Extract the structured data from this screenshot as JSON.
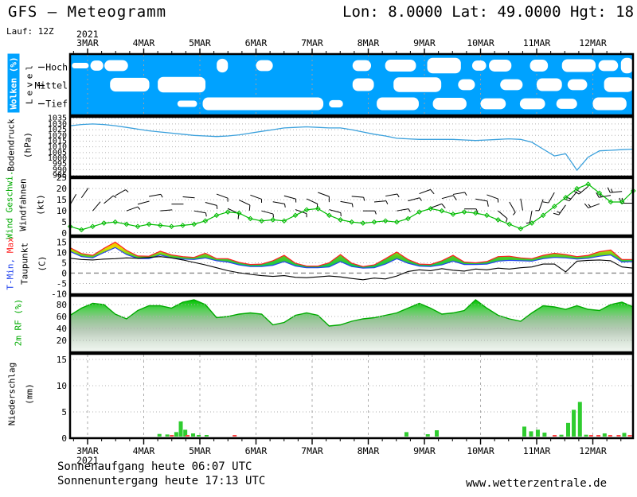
{
  "header": {
    "title": "GFS — Meteogramm",
    "coords": "Lon: 8.0000 Lat: 49.0000 Hgt: 18",
    "run": "Lauf: 12Z"
  },
  "footer": {
    "sunrise": "Sonnenaufgang heute 06:07 UTC",
    "sunset": "Sonnenuntergang heute 17:13 UTC",
    "site": "www.wetterzentrale.de"
  },
  "axis": {
    "year": "2021",
    "days": [
      "3MAR",
      "4MAR",
      "5MAR",
      "6MAR",
      "7MAR",
      "8MAR",
      "9MAR",
      "10MAR",
      "11MAR",
      "12MAR"
    ]
  },
  "panels": {
    "clouds": {
      "label": "Wolken (%)",
      "level_label": "Level",
      "rows": [
        "Hoch",
        "Mittel",
        "Tief"
      ]
    },
    "pressure": {
      "label": "Bodendruck",
      "unit": "(hPa)"
    },
    "wind": {
      "label": "Wind Geschwi.",
      "label2": "Windfahnen",
      "unit": "(kt)"
    },
    "temp": {
      "label_min": "T-Min,",
      "label_max": "Max",
      "label2": "Taupunkt",
      "unit": "(C)"
    },
    "rf": {
      "label": "2m RF (%)"
    },
    "precip": {
      "label": "Niederschlag",
      "unit": "(mm)"
    }
  },
  "colors": {
    "sky": "#00A2FF",
    "cloud": "#ffffff",
    "pressure": "#3AA0DC",
    "wind": "#00BB00",
    "tmax": "#FF2020",
    "tmin": "#2244EE",
    "dew": "#000000",
    "rfline": "#00AA00",
    "precip_green": "#2FCC2F",
    "precip_red": "#FF4444",
    "grid": "#b0b0b0"
  },
  "chart_data": [
    {
      "id": "clouds",
      "type": "area",
      "title": "Wolken (%)",
      "levels": [
        "Hoch",
        "Mittel",
        "Tief"
      ],
      "x_note": "days of MAR 2021, blobs = [day_start, day_end, coverage 0-1]",
      "blobs": {
        "hoch": [
          [
            2.72,
            3.02,
            0.3
          ],
          [
            3.05,
            3.28,
            0.55
          ],
          [
            3.3,
            3.72,
            0.6
          ],
          [
            5.3,
            5.5,
            0.75
          ],
          [
            6.0,
            6.3,
            0.6
          ],
          [
            7.72,
            8.05,
            0.6
          ],
          [
            8.3,
            8.85,
            0.65
          ],
          [
            9.05,
            9.65,
            0.85
          ],
          [
            9.85,
            10.1,
            0.55
          ],
          [
            10.15,
            10.55,
            0.65
          ],
          [
            10.88,
            11.2,
            0.65
          ],
          [
            11.45,
            12.05,
            0.7
          ],
          [
            12.1,
            12.45,
            0.6
          ],
          [
            12.5,
            12.72,
            0.85
          ]
        ],
        "mittel": [
          [
            3.4,
            4.1,
            0.75
          ],
          [
            4.25,
            5.1,
            0.85
          ],
          [
            7.72,
            8.1,
            0.7
          ],
          [
            8.45,
            9.3,
            0.8
          ],
          [
            9.6,
            9.9,
            0.6
          ],
          [
            10.35,
            10.75,
            0.6
          ],
          [
            11.0,
            11.45,
            0.7
          ],
          [
            11.55,
            11.9,
            0.6
          ],
          [
            12.2,
            12.72,
            0.8
          ]
        ],
        "tief": [
          [
            4.6,
            4.95,
            0.35
          ],
          [
            5.05,
            7.2,
            0.7
          ],
          [
            7.3,
            7.55,
            0.4
          ],
          [
            8.15,
            8.9,
            0.7
          ],
          [
            9.15,
            9.75,
            0.65
          ],
          [
            10.0,
            10.45,
            0.6
          ],
          [
            10.7,
            11.15,
            0.6
          ],
          [
            11.35,
            11.72,
            0.55
          ],
          [
            12.0,
            12.6,
            0.7
          ]
        ]
      }
    },
    {
      "id": "pressure",
      "type": "line",
      "ylabel": "Bodendruck (hPa)",
      "ylim": [
        984,
        1036.2
      ],
      "yticks": [
        1035,
        1030,
        1025,
        1020,
        1015,
        1010,
        1005,
        1000,
        995,
        990,
        985
      ],
      "t_start": 2.69,
      "t_end": 12.72,
      "values": [
        1028.5,
        1029.5,
        1030,
        1029.5,
        1028.5,
        1027,
        1025.5,
        1024,
        1023,
        1022,
        1021,
        1020,
        1019.5,
        1019,
        1019.5,
        1020.5,
        1022,
        1023.5,
        1025,
        1026.5,
        1027,
        1027.5,
        1027,
        1026.5,
        1026.5,
        1025,
        1023,
        1021,
        1019.5,
        1017.5,
        1017,
        1016.5,
        1016.5,
        1016.5,
        1016.5,
        1016,
        1015.5,
        1016,
        1016.5,
        1017,
        1016.5,
        1014,
        1008,
        1002,
        1004,
        989.5,
        1001,
        1006.5,
        1007,
        1007.5,
        1008
      ]
    },
    {
      "id": "wind",
      "type": "line",
      "ylabel": "Wind Geschwi. (kt)",
      "ylim": [
        -1,
        24.7
      ],
      "yticks": [
        25,
        20,
        15,
        10,
        5,
        0
      ],
      "t_start": 2.69,
      "t_end": 12.72,
      "speed": [
        3,
        1.5,
        3,
        4.5,
        5,
        4,
        3,
        4,
        3.5,
        3,
        3.5,
        4,
        5.5,
        8,
        9.5,
        9,
        6.5,
        5.5,
        6,
        5.5,
        8,
        10.5,
        11,
        8,
        6,
        5,
        4.5,
        5,
        5.5,
        5,
        6.5,
        9.5,
        11,
        10,
        8.5,
        9.5,
        9,
        8,
        6,
        4,
        2,
        4.5,
        8,
        12,
        16,
        20,
        22,
        18,
        14,
        14,
        19
      ],
      "dir": [
        30,
        35,
        40,
        50,
        60,
        70,
        75,
        80,
        85,
        90,
        95,
        100,
        105,
        110,
        115,
        115,
        110,
        105,
        100,
        105,
        110,
        115,
        110,
        105,
        100,
        95,
        90,
        85,
        80,
        80,
        75,
        70,
        70,
        75,
        80,
        90,
        100,
        110,
        130,
        150,
        170,
        190,
        200,
        210,
        215,
        220,
        230,
        250,
        260,
        265,
        270
      ]
    },
    {
      "id": "temp",
      "type": "band",
      "ylabel": "T-Min, Max / Taupunkt (C)",
      "ylim": [
        -10.2,
        17.5
      ],
      "yticks": [
        15,
        10,
        5,
        0,
        -5,
        -10
      ],
      "t_start": 2.69,
      "t_end": 12.72,
      "tmax": [
        12.3,
        9.5,
        8.6,
        12.0,
        15.0,
        11.0,
        8.3,
        8.2,
        10.6,
        8.8,
        8.0,
        7.6,
        9.6,
        7.0,
        7.0,
        5.2,
        4.2,
        4.4,
        6.0,
        8.6,
        4.8,
        3.4,
        3.4,
        5.0,
        9.0,
        4.8,
        3.2,
        4.0,
        7.0,
        10.2,
        6.6,
        4.4,
        4.2,
        6.0,
        8.6,
        5.4,
        5.0,
        5.6,
        8.0,
        8.2,
        7.4,
        7.0,
        8.6,
        9.6,
        9.0,
        8.0,
        8.6,
        10.4,
        11.2,
        6.6,
        6.6
      ],
      "tmin": [
        10.5,
        8.0,
        7.4,
        10.0,
        12.4,
        9.0,
        7.1,
        7.0,
        8.8,
        7.4,
        6.8,
        6.6,
        7.4,
        6.0,
        5.4,
        4.0,
        3.2,
        3.2,
        3.8,
        5.6,
        3.4,
        2.6,
        2.6,
        3.0,
        5.6,
        3.2,
        2.4,
        2.6,
        4.4,
        7.0,
        4.8,
        3.4,
        3.2,
        4.0,
        5.8,
        4.2,
        4.2,
        4.4,
        5.8,
        6.2,
        6.0,
        5.8,
        7.0,
        7.6,
        7.4,
        6.8,
        7.2,
        8.2,
        8.8,
        5.4,
        5.6
      ],
      "dew": [
        7.2,
        6.6,
        6.4,
        6.8,
        7.0,
        7.4,
        7.2,
        7.6,
        8.0,
        7.4,
        6.4,
        5.2,
        4.0,
        2.6,
        1.2,
        0.2,
        -0.6,
        -1.2,
        -1.6,
        -1.2,
        -2.0,
        -2.2,
        -1.8,
        -1.4,
        -1.8,
        -2.6,
        -3.2,
        -2.4,
        -2.8,
        -1.4,
        0.8,
        1.6,
        1.2,
        2.2,
        1.4,
        1.0,
        2.0,
        1.6,
        2.4,
        2.0,
        2.6,
        3.0,
        4.4,
        4.4,
        0.6,
        5.8,
        6.2,
        6.4,
        6.0,
        3.0,
        2.4
      ]
    },
    {
      "id": "rf",
      "type": "area",
      "ylabel": "2m RF (%)",
      "ylim": [
        0,
        94.6
      ],
      "yticks": [
        80,
        60,
        40,
        20
      ],
      "t_start": 2.69,
      "t_end": 12.72,
      "values": [
        62,
        74,
        82,
        80,
        64,
        56,
        70,
        78,
        78,
        74,
        84,
        88,
        80,
        58,
        60,
        64,
        66,
        64,
        46,
        50,
        62,
        66,
        62,
        44,
        46,
        52,
        56,
        58,
        62,
        66,
        74,
        82,
        74,
        64,
        66,
        70,
        88,
        74,
        62,
        56,
        52,
        66,
        78,
        76,
        72,
        78,
        72,
        70,
        80,
        84,
        76
      ]
    },
    {
      "id": "precip",
      "type": "bar",
      "ylabel": "Niederschlag (mm)",
      "ylim": [
        0,
        16.06
      ],
      "yticks": [
        15,
        10,
        5,
        0
      ],
      "bar_note": "[day, mm, g=rain green / r=convective red]",
      "bars": [
        [
          4.28,
          0.5,
          "g"
        ],
        [
          4.42,
          0.4,
          "g"
        ],
        [
          4.5,
          0.15,
          "r"
        ],
        [
          4.58,
          0.85,
          "g"
        ],
        [
          4.66,
          2.9,
          "g"
        ],
        [
          4.74,
          1.3,
          "g"
        ],
        [
          4.78,
          0.2,
          "r"
        ],
        [
          4.88,
          0.6,
          "g"
        ],
        [
          4.98,
          0.3,
          "g"
        ],
        [
          5.12,
          0.15,
          "g"
        ],
        [
          5.62,
          0.12,
          "r"
        ],
        [
          8.68,
          0.85,
          "g"
        ],
        [
          9.06,
          0.45,
          "g"
        ],
        [
          9.22,
          1.2,
          "g"
        ],
        [
          10.78,
          1.9,
          "g"
        ],
        [
          10.9,
          1.0,
          "g"
        ],
        [
          11.02,
          1.3,
          "g"
        ],
        [
          11.14,
          0.75,
          "g"
        ],
        [
          11.32,
          0.2,
          "r"
        ],
        [
          11.44,
          0.35,
          "g"
        ],
        [
          11.56,
          2.6,
          "g"
        ],
        [
          11.66,
          5.1,
          "g"
        ],
        [
          11.77,
          6.6,
          "g"
        ],
        [
          11.88,
          0.35,
          "g"
        ],
        [
          11.97,
          0.2,
          "r"
        ],
        [
          12.1,
          0.2,
          "r"
        ],
        [
          12.21,
          0.6,
          "g"
        ],
        [
          12.31,
          0.2,
          "r"
        ],
        [
          12.46,
          0.25,
          "r"
        ],
        [
          12.56,
          0.7,
          "g"
        ],
        [
          12.66,
          0.25,
          "r"
        ]
      ]
    }
  ]
}
